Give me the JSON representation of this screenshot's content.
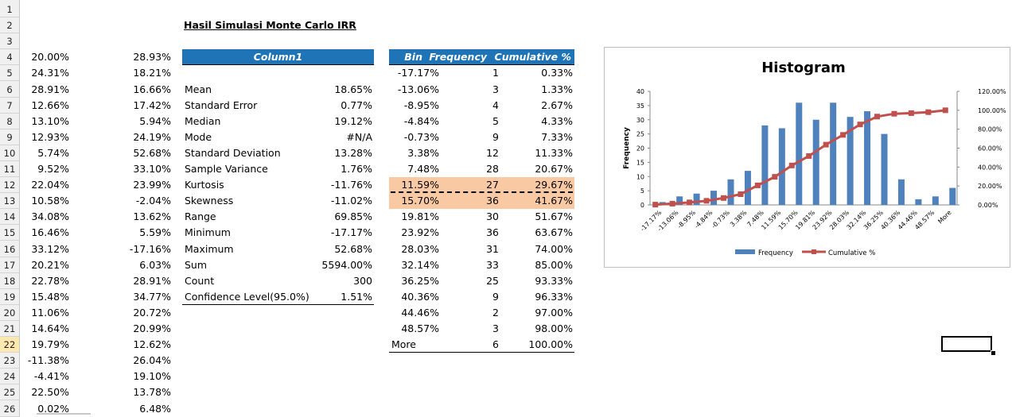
{
  "row_numbers": [
    "1",
    "2",
    "3",
    "4",
    "5",
    "6",
    "7",
    "8",
    "9",
    "10",
    "11",
    "12",
    "13",
    "14",
    "15",
    "16",
    "17",
    "18",
    "19",
    "20",
    "21",
    "22",
    "23",
    "24",
    "25",
    "26"
  ],
  "active_row": "22",
  "title": "Hasil Simulasi Monte Carlo IRR",
  "colA": [
    "20.00%",
    "24.31%",
    "28.91%",
    "12.66%",
    "13.10%",
    "12.93%",
    "5.74%",
    "9.52%",
    "22.04%",
    "10.58%",
    "34.08%",
    "16.46%",
    "33.12%",
    "20.21%",
    "22.78%",
    "15.48%",
    "11.06%",
    "14.64%",
    "19.79%",
    "-11.38%",
    "-4.41%",
    "22.50%",
    "0.02%"
  ],
  "colB": [
    "28.93%",
    "18.21%",
    "16.66%",
    "17.42%",
    "5.94%",
    "24.19%",
    "52.68%",
    "33.10%",
    "23.99%",
    "-2.04%",
    "13.62%",
    "5.59%",
    "-17.16%",
    "6.03%",
    "28.91%",
    "34.77%",
    "20.72%",
    "20.99%",
    "12.62%",
    "26.04%",
    "19.10%",
    "13.78%",
    "6.48%"
  ],
  "stats": {
    "header": "Column1",
    "rows": [
      {
        "label": "Mean",
        "value": "18.65%"
      },
      {
        "label": "Standard Error",
        "value": "0.77%"
      },
      {
        "label": "Median",
        "value": "19.12%"
      },
      {
        "label": "Mode",
        "value": "#N/A"
      },
      {
        "label": "Standard Deviation",
        "value": "13.28%"
      },
      {
        "label": "Sample Variance",
        "value": "1.76%"
      },
      {
        "label": "Kurtosis",
        "value": "-11.76%"
      },
      {
        "label": "Skewness",
        "value": "-11.02%"
      },
      {
        "label": "Range",
        "value": "69.85%"
      },
      {
        "label": "Minimum",
        "value": "-17.17%"
      },
      {
        "label": "Maximum",
        "value": "52.68%"
      },
      {
        "label": "Sum",
        "value": "5594.00%"
      },
      {
        "label": "Count",
        "value": "300"
      },
      {
        "label": "Confidence Level(95.0%)",
        "value": "1.51%"
      }
    ]
  },
  "freq_table": {
    "headers": {
      "bin": "Bin",
      "frequency": "Frequency",
      "cumulative": "Cumulative %"
    },
    "rows": [
      {
        "bin": "-17.17%",
        "freq": "1",
        "cum": "0.33%"
      },
      {
        "bin": "-13.06%",
        "freq": "3",
        "cum": "1.33%"
      },
      {
        "bin": "-8.95%",
        "freq": "4",
        "cum": "2.67%"
      },
      {
        "bin": "-4.84%",
        "freq": "5",
        "cum": "4.33%"
      },
      {
        "bin": "-0.73%",
        "freq": "9",
        "cum": "7.33%"
      },
      {
        "bin": "3.38%",
        "freq": "12",
        "cum": "11.33%"
      },
      {
        "bin": "7.48%",
        "freq": "28",
        "cum": "20.67%"
      },
      {
        "bin": "11.59%",
        "freq": "27",
        "cum": "29.67%"
      },
      {
        "bin": "15.70%",
        "freq": "36",
        "cum": "41.67%"
      },
      {
        "bin": "19.81%",
        "freq": "30",
        "cum": "51.67%"
      },
      {
        "bin": "23.92%",
        "freq": "36",
        "cum": "63.67%"
      },
      {
        "bin": "28.03%",
        "freq": "31",
        "cum": "74.00%"
      },
      {
        "bin": "32.14%",
        "freq": "33",
        "cum": "85.00%"
      },
      {
        "bin": "36.25%",
        "freq": "25",
        "cum": "93.33%"
      },
      {
        "bin": "40.36%",
        "freq": "9",
        "cum": "96.33%"
      },
      {
        "bin": "44.46%",
        "freq": "2",
        "cum": "97.00%"
      },
      {
        "bin": "48.57%",
        "freq": "3",
        "cum": "98.00%"
      },
      {
        "bin": "More",
        "freq": "6",
        "cum": "100.00%"
      }
    ]
  },
  "colors": {
    "header_blue": "#1f73b7",
    "highlight_orange": "#f9c9a3",
    "bar_blue": "#4f81bd",
    "line_red": "#c0504d"
  },
  "chart_data": {
    "type": "bar",
    "title": "Histogram",
    "ylabel": "Frequency",
    "y2label": "",
    "categories": [
      "-17.17%",
      "-13.06%",
      "-8.95%",
      "-4.84%",
      "-0.73%",
      "3.38%",
      "7.48%",
      "11.59%",
      "15.70%",
      "19.81%",
      "23.92%",
      "28.03%",
      "32.14%",
      "36.25%",
      "40.36%",
      "44.46%",
      "48.57%",
      "More"
    ],
    "series": [
      {
        "name": "Frequency",
        "type": "bar",
        "axis": "left",
        "values": [
          1,
          3,
          4,
          5,
          9,
          12,
          28,
          27,
          36,
          30,
          36,
          31,
          33,
          25,
          9,
          2,
          3,
          6
        ]
      },
      {
        "name": "Cumulative %",
        "type": "line",
        "axis": "right",
        "values": [
          0.33,
          1.33,
          2.67,
          4.33,
          7.33,
          11.33,
          20.67,
          29.67,
          41.67,
          51.67,
          63.67,
          74.0,
          85.0,
          93.33,
          96.33,
          97.0,
          98.0,
          100.0
        ]
      }
    ],
    "ylim": [
      0,
      40
    ],
    "yticks": [
      "0",
      "5",
      "10",
      "15",
      "20",
      "25",
      "30",
      "35",
      "40"
    ],
    "y2lim": [
      0,
      120
    ],
    "y2ticks": [
      "0.00%",
      "20.00%",
      "40.00%",
      "60.00%",
      "80.00%",
      "100.00%",
      "120.00%"
    ],
    "legend": "bottom",
    "grid": false
  }
}
